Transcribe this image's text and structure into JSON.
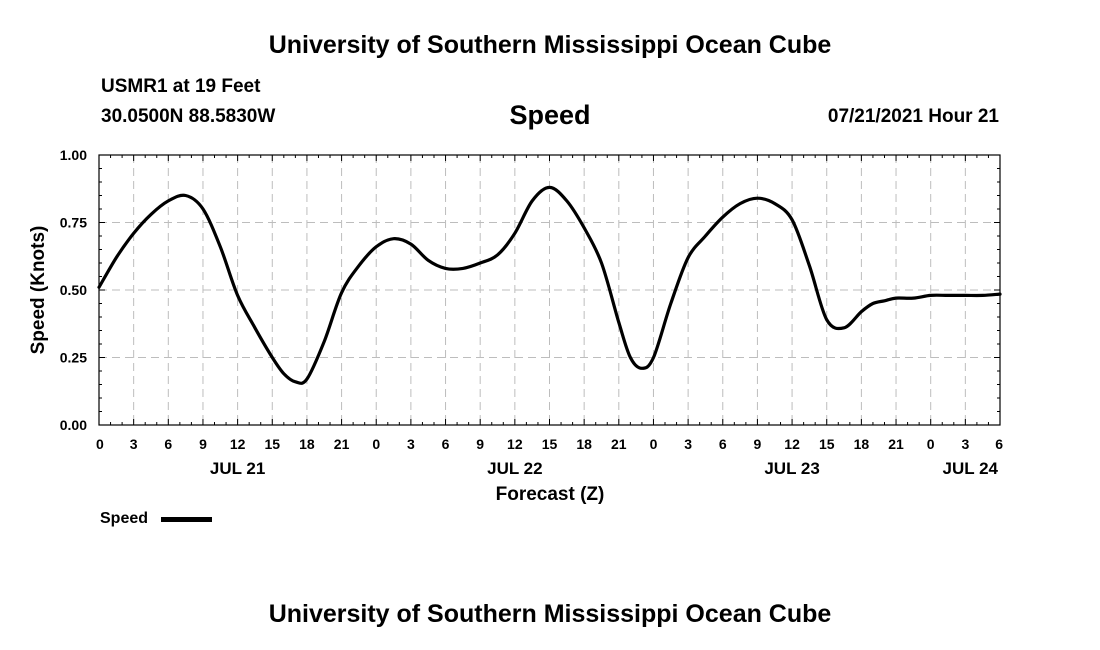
{
  "header": {
    "title": "University of Southern Mississippi Ocean Cube",
    "station": "USMR1 at 19 Feet",
    "coordinates": "30.0500N  88.5830W",
    "variable": "Speed",
    "datetime": "07/21/2021 Hour 21"
  },
  "footer": {
    "title": "University of Southern Mississippi Ocean Cube"
  },
  "legend": {
    "label": "Speed",
    "placement": "bottom-left"
  },
  "chart_data": {
    "type": "line",
    "title": "Speed",
    "xlabel": "Forecast (Z)",
    "ylabel": "Speed (Knots)",
    "x_unit": "hours from 07/21/2021 00Z",
    "xlim": [
      0,
      78
    ],
    "ylim": [
      0,
      1.0
    ],
    "grid": true,
    "grid_style": "dashed",
    "y_ticks": [
      "0.00",
      "0.25",
      "0.50",
      "0.75",
      "1.00"
    ],
    "y_tick_values": [
      0,
      0.25,
      0.5,
      0.75,
      1.0
    ],
    "x_tick_labels": [
      "0",
      "3",
      "6",
      "9",
      "12",
      "15",
      "18",
      "21",
      "0",
      "3",
      "6",
      "9",
      "12",
      "15",
      "18",
      "21",
      "0",
      "3",
      "6",
      "9",
      "12",
      "15",
      "18",
      "21",
      "0",
      "3",
      "6"
    ],
    "date_labels": [
      {
        "label": "JUL 21",
        "hour": 12
      },
      {
        "label": "JUL 22",
        "hour": 36
      },
      {
        "label": "JUL 23",
        "hour": 60
      },
      {
        "label": "JUL 24",
        "hour": 78
      }
    ],
    "series": [
      {
        "name": "Speed",
        "color": "#000000",
        "x": [
          0,
          1.5,
          3,
          4.5,
          6,
          7.5,
          9,
          10.5,
          12,
          13.5,
          15,
          16,
          17,
          18,
          19.5,
          21,
          22.5,
          24,
          25.5,
          27,
          28.5,
          30,
          31.5,
          33,
          34.5,
          36,
          37.5,
          39,
          40.5,
          42,
          43.5,
          45,
          46,
          47,
          48,
          49.5,
          51,
          52.5,
          54,
          55.5,
          57,
          58.5,
          60,
          61.5,
          63,
          64.5,
          66,
          67,
          68,
          69,
          70.5,
          72,
          73.5,
          75,
          76.5,
          78
        ],
        "y": [
          0.51,
          0.62,
          0.71,
          0.78,
          0.83,
          0.85,
          0.8,
          0.66,
          0.48,
          0.36,
          0.25,
          0.19,
          0.16,
          0.17,
          0.31,
          0.49,
          0.59,
          0.66,
          0.69,
          0.67,
          0.61,
          0.58,
          0.58,
          0.6,
          0.63,
          0.71,
          0.83,
          0.88,
          0.83,
          0.73,
          0.6,
          0.38,
          0.25,
          0.21,
          0.25,
          0.45,
          0.62,
          0.7,
          0.77,
          0.82,
          0.84,
          0.82,
          0.76,
          0.59,
          0.39,
          0.36,
          0.42,
          0.45,
          0.46,
          0.47,
          0.47,
          0.48,
          0.48,
          0.48,
          0.48,
          0.485
        ]
      }
    ]
  }
}
